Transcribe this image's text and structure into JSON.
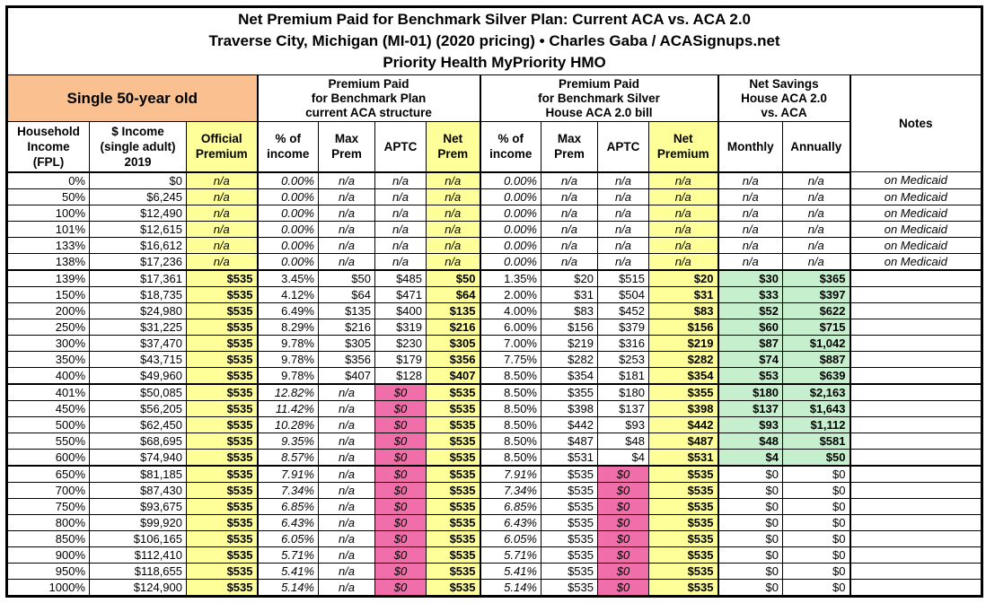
{
  "title": {
    "line1": "Net Premium Paid for Benchmark Silver Plan: Current ACA vs. ACA 2.0",
    "line2": "Traverse City, Michigan (MI-01) (2020 pricing) • Charles Gaba / ACASignups.net",
    "line3": "Priority Health MyPriority HMO"
  },
  "groups": {
    "subject": "Single 50-year old",
    "aca": "Premium Paid\nfor Benchmark Plan\ncurrent ACA structure",
    "aca2": "Premium Paid\nfor Benchmark Silver\nHouse ACA 2.0 bill",
    "savings": "Net Savings\nHouse ACA 2.0\nvs. ACA",
    "notes": "Notes"
  },
  "columns": {
    "fpl": "Household\nIncome\n(FPL)",
    "income": "$ Income\n(single adult)\n2019",
    "official_premium": "Official\nPremium",
    "aca_pct_income": "% of\nincome",
    "aca_max_prem": "Max\nPrem",
    "aca_aptc": "APTC",
    "aca_net_prem": "Net\nPrem",
    "aca2_pct_income": "% of\nincome",
    "aca2_max_prem": "Max\nPrem",
    "aca2_aptc": "APTC",
    "aca2_net_premium": "Net\nPremium",
    "savings_monthly": "Monthly",
    "savings_annually": "Annually"
  },
  "colors": {
    "highlight_yellow": "#FFFF99",
    "subject_peach": "#FAC090",
    "aptc_zero_pink": "#F06EA9",
    "savings_green": "#C6EFCE",
    "border_black": "#000000"
  },
  "rows": [
    {
      "type": "medicaid",
      "cells": [
        "0%",
        "$0",
        "n/a",
        "0.00%",
        "n/a",
        "n/a",
        "n/a",
        "0.00%",
        "n/a",
        "n/a",
        "n/a",
        "n/a",
        "n/a",
        "on Medicaid"
      ]
    },
    {
      "type": "medicaid",
      "cells": [
        "50%",
        "$6,245",
        "n/a",
        "0.00%",
        "n/a",
        "n/a",
        "n/a",
        "0.00%",
        "n/a",
        "n/a",
        "n/a",
        "n/a",
        "n/a",
        "on Medicaid"
      ]
    },
    {
      "type": "medicaid",
      "cells": [
        "100%",
        "$12,490",
        "n/a",
        "0.00%",
        "n/a",
        "n/a",
        "n/a",
        "0.00%",
        "n/a",
        "n/a",
        "n/a",
        "n/a",
        "n/a",
        "on Medicaid"
      ]
    },
    {
      "type": "medicaid",
      "cells": [
        "101%",
        "$12,615",
        "n/a",
        "0.00%",
        "n/a",
        "n/a",
        "n/a",
        "0.00%",
        "n/a",
        "n/a",
        "n/a",
        "n/a",
        "n/a",
        "on Medicaid"
      ]
    },
    {
      "type": "medicaid",
      "cells": [
        "133%",
        "$16,612",
        "n/a",
        "0.00%",
        "n/a",
        "n/a",
        "n/a",
        "0.00%",
        "n/a",
        "n/a",
        "n/a",
        "n/a",
        "n/a",
        "on Medicaid"
      ]
    },
    {
      "type": "medicaid",
      "cells": [
        "138%",
        "$17,236",
        "n/a",
        "0.00%",
        "n/a",
        "n/a",
        "n/a",
        "0.00%",
        "n/a",
        "n/a",
        "n/a",
        "n/a",
        "n/a",
        "on Medicaid"
      ]
    },
    {
      "type": "subsidized",
      "cells": [
        "139%",
        "$17,361",
        "$535",
        "3.45%",
        "$50",
        "$485",
        "$50",
        "1.35%",
        "$20",
        "$515",
        "$20",
        "$30",
        "$365",
        ""
      ]
    },
    {
      "type": "subsidized",
      "cells": [
        "150%",
        "$18,735",
        "$535",
        "4.12%",
        "$64",
        "$471",
        "$64",
        "2.00%",
        "$31",
        "$504",
        "$31",
        "$33",
        "$397",
        ""
      ]
    },
    {
      "type": "subsidized",
      "cells": [
        "200%",
        "$24,980",
        "$535",
        "6.49%",
        "$135",
        "$400",
        "$135",
        "4.00%",
        "$83",
        "$452",
        "$83",
        "$52",
        "$622",
        ""
      ]
    },
    {
      "type": "subsidized",
      "cells": [
        "250%",
        "$31,225",
        "$535",
        "8.29%",
        "$216",
        "$319",
        "$216",
        "6.00%",
        "$156",
        "$379",
        "$156",
        "$60",
        "$715",
        ""
      ]
    },
    {
      "type": "subsidized",
      "cells": [
        "300%",
        "$37,470",
        "$535",
        "9.78%",
        "$305",
        "$230",
        "$305",
        "7.00%",
        "$219",
        "$316",
        "$219",
        "$87",
        "$1,042",
        ""
      ]
    },
    {
      "type": "subsidized",
      "cells": [
        "350%",
        "$43,715",
        "$535",
        "9.78%",
        "$356",
        "$179",
        "$356",
        "7.75%",
        "$282",
        "$253",
        "$282",
        "$74",
        "$887",
        ""
      ]
    },
    {
      "type": "subsidized",
      "cells": [
        "400%",
        "$49,960",
        "$535",
        "9.78%",
        "$407",
        "$128",
        "$407",
        "8.50%",
        "$354",
        "$181",
        "$354",
        "$53",
        "$639",
        ""
      ]
    },
    {
      "type": "aca2-only",
      "cells": [
        "401%",
        "$50,085",
        "$535",
        "12.82%",
        "n/a",
        "$0",
        "$535",
        "8.50%",
        "$355",
        "$180",
        "$355",
        "$180",
        "$2,163",
        ""
      ]
    },
    {
      "type": "aca2-only",
      "cells": [
        "450%",
        "$56,205",
        "$535",
        "11.42%",
        "n/a",
        "$0",
        "$535",
        "8.50%",
        "$398",
        "$137",
        "$398",
        "$137",
        "$1,643",
        ""
      ]
    },
    {
      "type": "aca2-only",
      "cells": [
        "500%",
        "$62,450",
        "$535",
        "10.28%",
        "n/a",
        "$0",
        "$535",
        "8.50%",
        "$442",
        "$93",
        "$442",
        "$93",
        "$1,112",
        ""
      ]
    },
    {
      "type": "aca2-only",
      "cells": [
        "550%",
        "$68,695",
        "$535",
        "9.35%",
        "n/a",
        "$0",
        "$535",
        "8.50%",
        "$487",
        "$48",
        "$487",
        "$48",
        "$581",
        ""
      ]
    },
    {
      "type": "aca2-only",
      "cells": [
        "600%",
        "$74,940",
        "$535",
        "8.57%",
        "n/a",
        "$0",
        "$535",
        "8.50%",
        "$531",
        "$4",
        "$531",
        "$4",
        "$50",
        ""
      ]
    },
    {
      "type": "unsubsidized",
      "cells": [
        "650%",
        "$81,185",
        "$535",
        "7.91%",
        "n/a",
        "$0",
        "$535",
        "7.91%",
        "$535",
        "$0",
        "$535",
        "$0",
        "$0",
        ""
      ]
    },
    {
      "type": "unsubsidized",
      "cells": [
        "700%",
        "$87,430",
        "$535",
        "7.34%",
        "n/a",
        "$0",
        "$535",
        "7.34%",
        "$535",
        "$0",
        "$535",
        "$0",
        "$0",
        ""
      ]
    },
    {
      "type": "unsubsidized",
      "cells": [
        "750%",
        "$93,675",
        "$535",
        "6.85%",
        "n/a",
        "$0",
        "$535",
        "6.85%",
        "$535",
        "$0",
        "$535",
        "$0",
        "$0",
        ""
      ]
    },
    {
      "type": "unsubsidized",
      "cells": [
        "800%",
        "$99,920",
        "$535",
        "6.43%",
        "n/a",
        "$0",
        "$535",
        "6.43%",
        "$535",
        "$0",
        "$535",
        "$0",
        "$0",
        ""
      ]
    },
    {
      "type": "unsubsidized",
      "cells": [
        "850%",
        "$106,165",
        "$535",
        "6.05%",
        "n/a",
        "$0",
        "$535",
        "6.05%",
        "$535",
        "$0",
        "$535",
        "$0",
        "$0",
        ""
      ]
    },
    {
      "type": "unsubsidized",
      "cells": [
        "900%",
        "$112,410",
        "$535",
        "5.71%",
        "n/a",
        "$0",
        "$535",
        "5.71%",
        "$535",
        "$0",
        "$535",
        "$0",
        "$0",
        ""
      ]
    },
    {
      "type": "unsubsidized",
      "cells": [
        "950%",
        "$118,655",
        "$535",
        "5.41%",
        "n/a",
        "$0",
        "$535",
        "5.41%",
        "$535",
        "$0",
        "$535",
        "$0",
        "$0",
        ""
      ]
    },
    {
      "type": "unsubsidized",
      "cells": [
        "1000%",
        "$124,900",
        "$535",
        "5.14%",
        "n/a",
        "$0",
        "$535",
        "5.14%",
        "$535",
        "$0",
        "$535",
        "$0",
        "$0",
        ""
      ]
    }
  ]
}
